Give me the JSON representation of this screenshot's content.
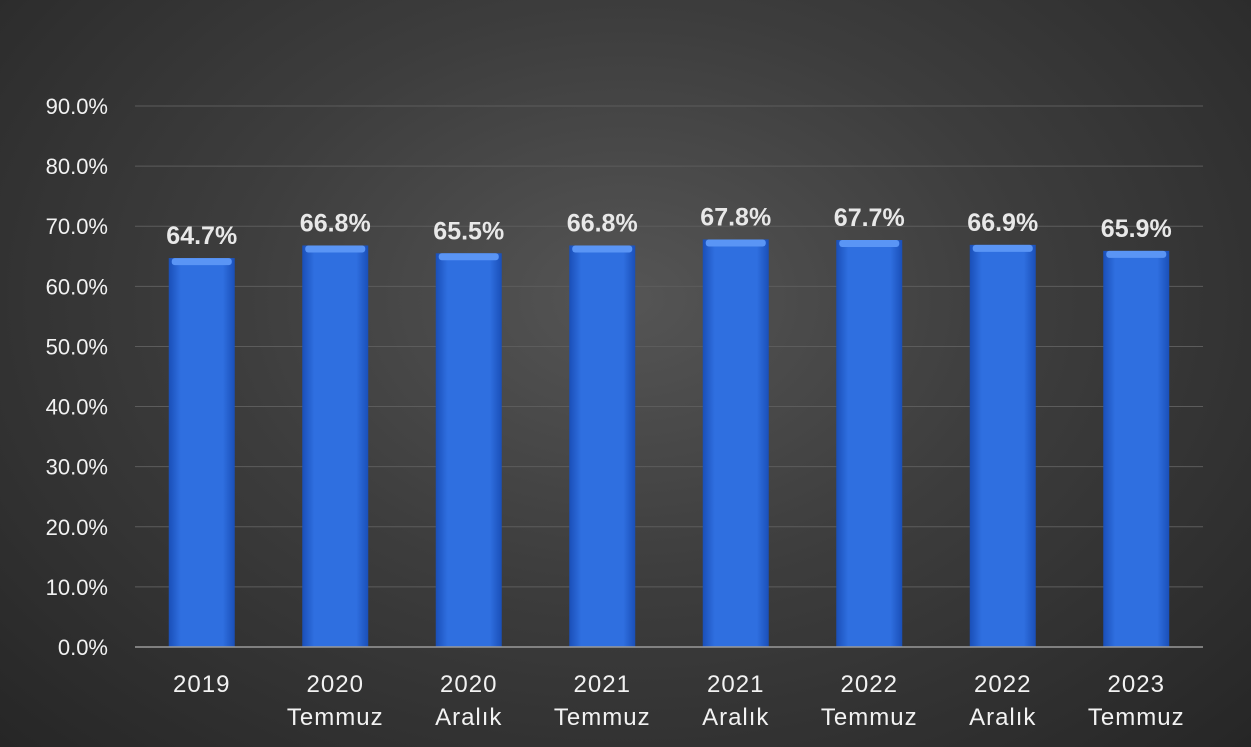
{
  "chart_data": {
    "type": "bar",
    "categories": [
      [
        "2019"
      ],
      [
        "2020",
        "Temmuz"
      ],
      [
        "2020",
        "Aralık"
      ],
      [
        "2021",
        "Temmuz"
      ],
      [
        "2021",
        "Aralık"
      ],
      [
        "2022",
        "Temmuz"
      ],
      [
        "2022",
        "Aralık"
      ],
      [
        "2023",
        "Temmuz"
      ]
    ],
    "values": [
      64.7,
      66.8,
      65.5,
      66.8,
      67.8,
      67.7,
      66.9,
      65.9
    ],
    "data_labels": [
      "64.7%",
      "66.8%",
      "65.5%",
      "66.8%",
      "67.8%",
      "67.7%",
      "66.9%",
      "65.9%"
    ],
    "y_ticks": [
      0,
      10,
      20,
      30,
      40,
      50,
      60,
      70,
      80,
      90
    ],
    "y_tick_labels": [
      "0.0%",
      "10.0%",
      "20.0%",
      "30.0%",
      "40.0%",
      "50.0%",
      "60.0%",
      "70.0%",
      "80.0%",
      "90.0%"
    ],
    "ylim": [
      0,
      90
    ],
    "title": "",
    "xlabel": "",
    "ylabel": "",
    "grid": true,
    "legend": "none",
    "colors": {
      "bar": "#2f6fe0",
      "bar_dark": "#1a4fb8",
      "bar_light": "#5a95f5",
      "grid": "#5c5c5c",
      "axis": "#9a9a9a",
      "text": "#f2f2f2"
    }
  }
}
